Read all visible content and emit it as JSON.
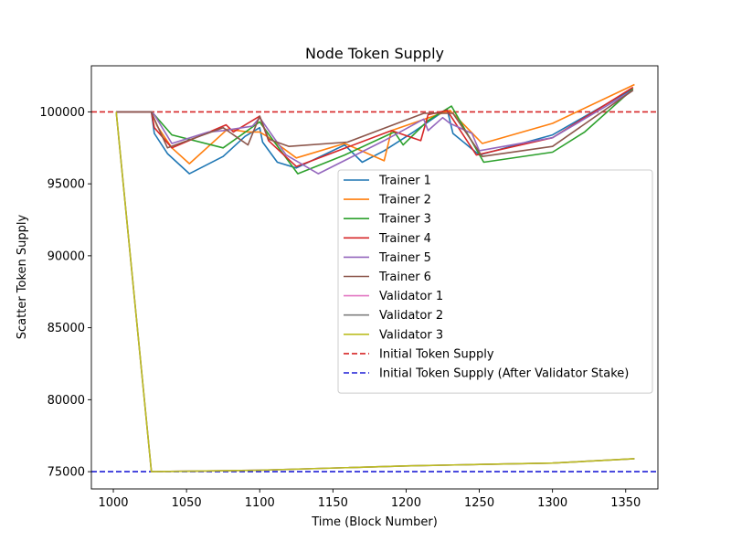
{
  "chart_data": {
    "type": "line",
    "title": "Node Token Supply",
    "xlabel": "Time (Block Number)",
    "ylabel": "Scatter Token Supply",
    "xlim": [
      985,
      1372
    ],
    "ylim": [
      73800,
      103200
    ],
    "xticks": [
      1000,
      1050,
      1100,
      1150,
      1200,
      1250,
      1300,
      1350
    ],
    "yticks": [
      75000,
      80000,
      85000,
      90000,
      95000,
      100000
    ],
    "grid": false,
    "legend_position": "center-right",
    "series": [
      {
        "name": "Trainer 1",
        "color": "#1f77b4",
        "x": [
          1002,
          1026,
          1028,
          1037,
          1052,
          1075,
          1090,
          1100,
          1102,
          1112,
          1125,
          1158,
          1170,
          1185,
          1205,
          1228,
          1232,
          1250,
          1300,
          1355
        ],
        "y": [
          100000,
          100000,
          98500,
          97100,
          95700,
          96900,
          98300,
          98900,
          97900,
          96500,
          96100,
          97700,
          96500,
          97300,
          98600,
          100200,
          98500,
          97000,
          98400,
          101600
        ]
      },
      {
        "name": "Trainer 2",
        "color": "#ff7f0e",
        "x": [
          1002,
          1026,
          1030,
          1040,
          1052,
          1078,
          1092,
          1100,
          1105,
          1125,
          1158,
          1185,
          1190,
          1230,
          1252,
          1300,
          1356
        ],
        "y": [
          100000,
          100000,
          99000,
          97500,
          96400,
          98800,
          98600,
          98600,
          98300,
          96800,
          97800,
          96600,
          98700,
          100100,
          97800,
          99200,
          101900
        ]
      },
      {
        "name": "Trainer 3",
        "color": "#2ca02c",
        "x": [
          1002,
          1026,
          1028,
          1040,
          1075,
          1100,
          1105,
          1126,
          1158,
          1192,
          1198,
          1215,
          1231,
          1253,
          1300,
          1322,
          1355
        ],
        "y": [
          100000,
          100000,
          99800,
          98400,
          97500,
          99300,
          98600,
          95700,
          97000,
          98600,
          97700,
          99400,
          100400,
          96500,
          97200,
          98600,
          101600
        ]
      },
      {
        "name": "Trainer 4",
        "color": "#d62728",
        "x": [
          1002,
          1026,
          1028,
          1040,
          1077,
          1082,
          1100,
          1106,
          1125,
          1190,
          1210,
          1215,
          1228,
          1248,
          1300,
          1355
        ],
        "y": [
          100000,
          100000,
          98900,
          97500,
          99100,
          98600,
          99700,
          98000,
          96200,
          98700,
          98000,
          99800,
          100100,
          97000,
          98200,
          101700
        ]
      },
      {
        "name": "Trainer 5",
        "color": "#9467bd",
        "x": [
          1002,
          1026,
          1028,
          1040,
          1065,
          1075,
          1095,
          1100,
          1118,
          1140,
          1185,
          1212,
          1215,
          1225,
          1230,
          1245,
          1250,
          1300,
          1355
        ],
        "y": [
          100000,
          100000,
          99800,
          97800,
          98600,
          98700,
          99000,
          99600,
          97000,
          95700,
          98000,
          99500,
          98700,
          99600,
          99200,
          98500,
          97300,
          98200,
          101500
        ]
      },
      {
        "name": "Trainer 6",
        "color": "#8c564b",
        "x": [
          1002,
          1026,
          1028,
          1037,
          1075,
          1092,
          1100,
          1106,
          1120,
          1160,
          1212,
          1232,
          1252,
          1300,
          1355
        ],
        "y": [
          100000,
          100000,
          99500,
          97500,
          98900,
          97700,
          99700,
          98100,
          97600,
          97900,
          99900,
          99900,
          96900,
          97600,
          101500
        ]
      },
      {
        "name": "Validator 1",
        "color": "#e377c2",
        "x": [
          1002,
          1026,
          1100,
          1200,
          1250,
          1300,
          1356
        ],
        "y": [
          100000,
          75000,
          75100,
          75400,
          75500,
          75600,
          75900
        ]
      },
      {
        "name": "Validator 2",
        "color": "#7f7f7f",
        "x": [
          1002,
          1026,
          1100,
          1200,
          1250,
          1300,
          1356
        ],
        "y": [
          100000,
          75000,
          75100,
          75400,
          75500,
          75600,
          75900
        ]
      },
      {
        "name": "Validator 3",
        "color": "#bcbd22",
        "x": [
          1002,
          1026,
          1100,
          1200,
          1250,
          1300,
          1356
        ],
        "y": [
          100000,
          75000,
          75100,
          75400,
          75500,
          75600,
          75900
        ]
      }
    ],
    "reference_lines": [
      {
        "name": "Initial Token Supply",
        "y": 100000,
        "color": "#d62728",
        "style": "dashed"
      },
      {
        "name": "Initial Token Supply (After Validator Stake)",
        "y": 75000,
        "color": "#1f1fd6",
        "style": "dashed"
      }
    ]
  }
}
